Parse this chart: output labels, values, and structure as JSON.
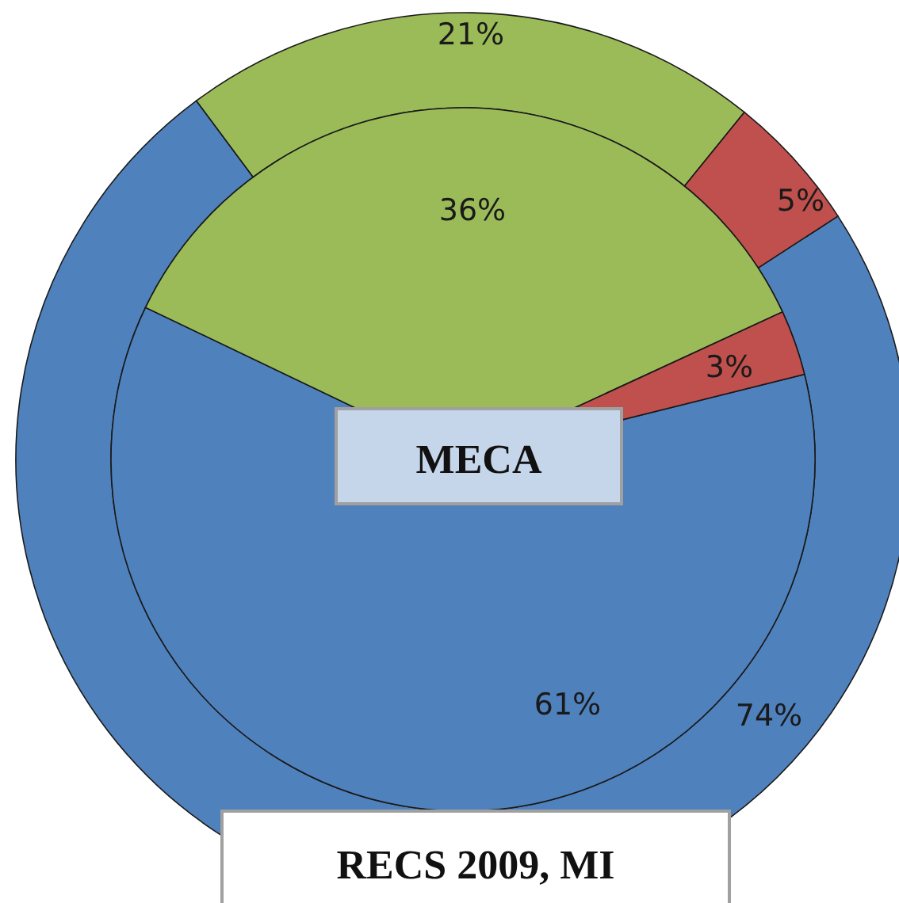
{
  "chart_data": [
    {
      "type": "pie",
      "title": "MECA",
      "categories": [
        null,
        null,
        null
      ],
      "values": [
        61,
        36,
        3
      ],
      "value_labels": [
        "61%",
        "36%",
        "3%"
      ],
      "colors": [
        "#4f81bd",
        "#9bbb59",
        "#c0504d"
      ]
    },
    {
      "type": "donut",
      "title": "RECS 2009, MI",
      "categories": [
        null,
        null,
        null
      ],
      "values": [
        74,
        21,
        5
      ],
      "value_labels": [
        "74%",
        "21%",
        "5%"
      ],
      "colors": [
        "#4f81bd",
        "#9bbb59",
        "#c0504d"
      ]
    }
  ]
}
